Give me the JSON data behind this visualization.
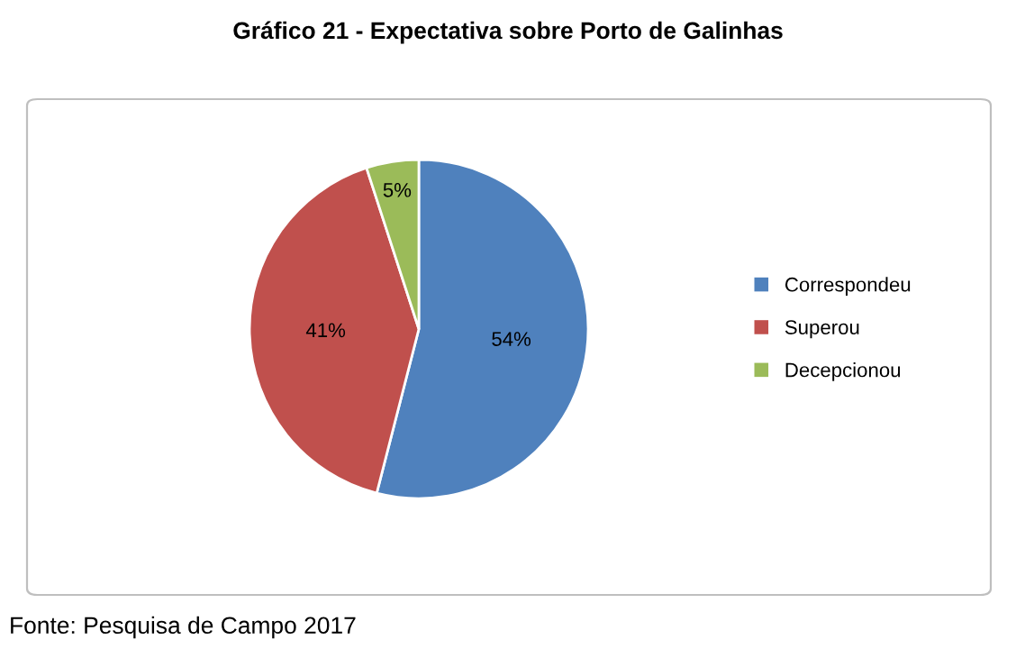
{
  "chart_data": {
    "type": "pie",
    "title": "Gráfico 21 - Expectativa sobre Porto de Galinhas",
    "categories": [
      "Correspondeu",
      "Superou",
      "Decepcionou"
    ],
    "values": [
      54,
      41,
      5
    ],
    "colors": [
      "#4f81bd",
      "#c0504d",
      "#9bbb59"
    ],
    "value_labels": [
      "54%",
      "41%",
      "5%"
    ],
    "legend": "right",
    "annotations": [
      "Fonte: Pesquisa de Campo 2017"
    ]
  }
}
